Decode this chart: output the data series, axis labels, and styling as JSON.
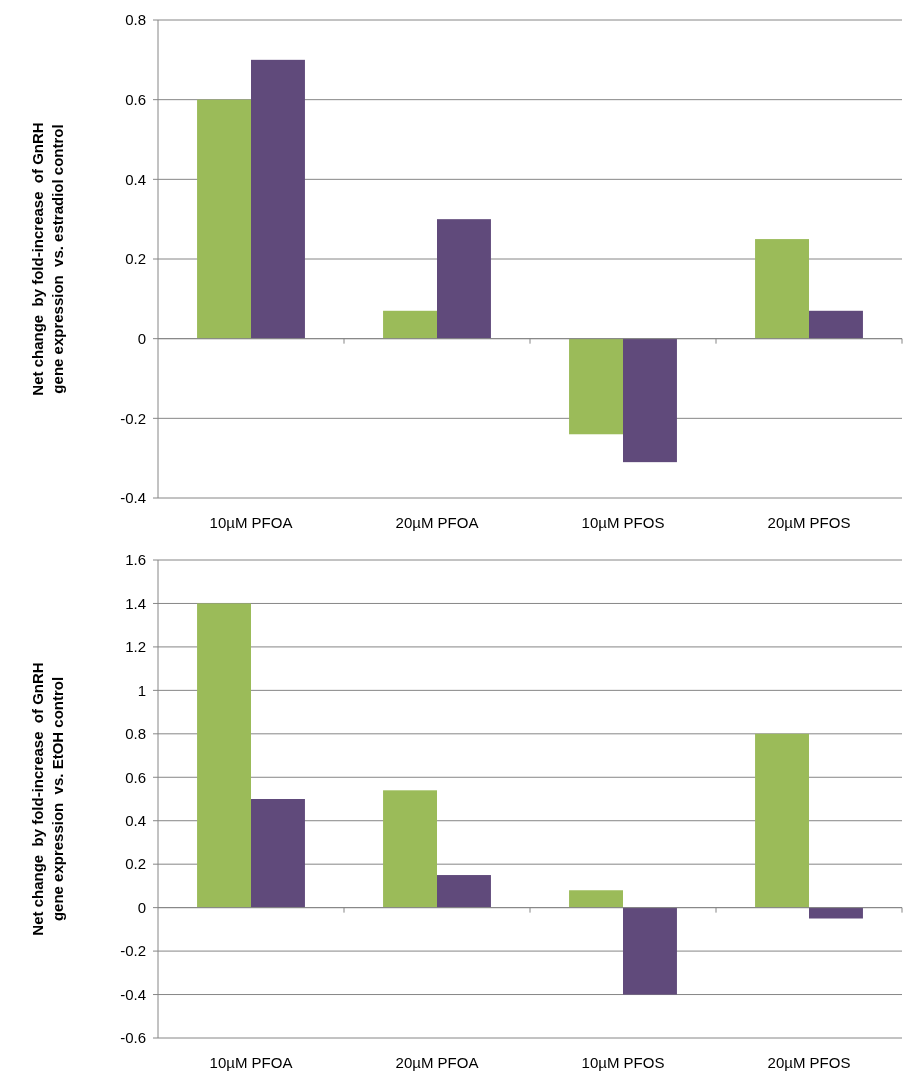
{
  "chart_data": [
    {
      "type": "bar",
      "ylabel": "Net change  by fold-increase  of GnRH\ngene expression  vs. estradiol control",
      "categories": [
        "10µM PFOA",
        "20µM PFOA",
        "10µM PFOS",
        "20µM PFOS"
      ],
      "series": [
        {
          "color": "#9bbb59",
          "values": [
            0.6,
            0.07,
            -0.24,
            0.25
          ]
        },
        {
          "color": "#604a7b",
          "values": [
            0.7,
            0.3,
            -0.31,
            0.07
          ]
        }
      ],
      "ylim": [
        -0.4,
        0.8
      ],
      "yticks": [
        {
          "value": -0.4,
          "label": "-0.4"
        },
        {
          "value": -0.2,
          "label": "-0.2"
        },
        0,
        0.2,
        0.4,
        0.6,
        0.8
      ],
      "grid": "y"
    },
    {
      "type": "bar",
      "ylabel": "Net change  by fold-increase  of GnRH\ngene expression  vs. EtOH control",
      "categories": [
        "10µM PFOA",
        "20µM PFOA",
        "10µM PFOS",
        "20µM PFOS"
      ],
      "series": [
        {
          "color": "#9bbb59",
          "values": [
            1.4,
            0.54,
            0.08,
            0.8
          ]
        },
        {
          "color": "#604a7b",
          "values": [
            0.5,
            0.15,
            -0.4,
            -0.05
          ]
        }
      ],
      "ylim": [
        -0.6,
        1.6
      ],
      "yticks": [
        {
          "value": -0.6,
          "label": "-0.6"
        },
        {
          "value": -0.4,
          "label": "-0.4"
        },
        {
          "value": -0.2,
          "label": "-0.2"
        },
        0,
        0.2,
        0.4,
        0.6,
        0.8,
        1,
        1.2,
        1.4,
        1.6
      ],
      "grid": "y"
    }
  ]
}
